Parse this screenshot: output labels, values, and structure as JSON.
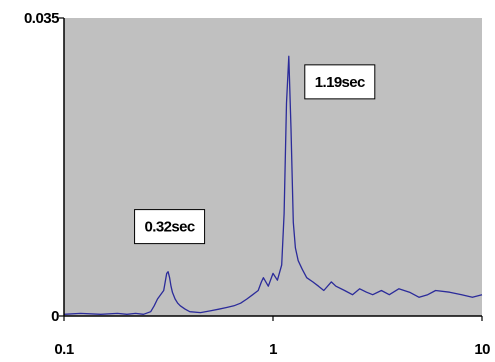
{
  "chart_data": {
    "type": "line",
    "title": "",
    "xlabel": "",
    "ylabel": "",
    "x_scale": "log",
    "xlim": [
      0.1,
      10
    ],
    "ylim": [
      0,
      0.035
    ],
    "grid": false,
    "legend": "none",
    "plot_bg": "#c0c0c0",
    "line_color": "#2b2b9a",
    "x_ticks": [
      "0.1",
      "1",
      "10"
    ],
    "y_ticks": [
      "0",
      "0.035"
    ],
    "series": [
      {
        "x": [
          0.1,
          0.12,
          0.15,
          0.18,
          0.2,
          0.22,
          0.24,
          0.26,
          0.27,
          0.28,
          0.29,
          0.3,
          0.31,
          0.315,
          0.32,
          0.325,
          0.33,
          0.34,
          0.35,
          0.36,
          0.38,
          0.4,
          0.45,
          0.5,
          0.55,
          0.6,
          0.65,
          0.7,
          0.75,
          0.8,
          0.85,
          0.88,
          0.9,
          0.95,
          1.0,
          1.05,
          1.1,
          1.13,
          1.16,
          1.19,
          1.22,
          1.25,
          1.28,
          1.32,
          1.38,
          1.45,
          1.55,
          1.65,
          1.75,
          1.9,
          2.0,
          2.2,
          2.4,
          2.6,
          2.8,
          3.0,
          3.3,
          3.6,
          4.0,
          4.5,
          5.0,
          5.5,
          6.0,
          7.0,
          8.0,
          9.0,
          10.0
        ],
        "y": [
          0.0002,
          0.0003,
          0.0002,
          0.0003,
          0.0002,
          0.0003,
          0.0002,
          0.0005,
          0.0012,
          0.002,
          0.0025,
          0.003,
          0.005,
          0.0052,
          0.0045,
          0.0035,
          0.0028,
          0.002,
          0.0015,
          0.0012,
          0.0008,
          0.0005,
          0.0004,
          0.0006,
          0.0008,
          0.001,
          0.0012,
          0.0015,
          0.002,
          0.0025,
          0.003,
          0.004,
          0.0045,
          0.0035,
          0.005,
          0.0042,
          0.006,
          0.012,
          0.025,
          0.0305,
          0.022,
          0.011,
          0.008,
          0.0065,
          0.0055,
          0.0045,
          0.004,
          0.0035,
          0.003,
          0.004,
          0.0035,
          0.003,
          0.0025,
          0.0032,
          0.0028,
          0.0025,
          0.003,
          0.0025,
          0.0032,
          0.0028,
          0.0022,
          0.0025,
          0.003,
          0.0028,
          0.0025,
          0.0022,
          0.0025
        ]
      }
    ],
    "annotations": [
      {
        "text": "0.32sec",
        "x": 0.32,
        "y": 0.0105
      },
      {
        "text": "1.19sec",
        "x": 1.19,
        "y": 0.0275
      }
    ]
  }
}
